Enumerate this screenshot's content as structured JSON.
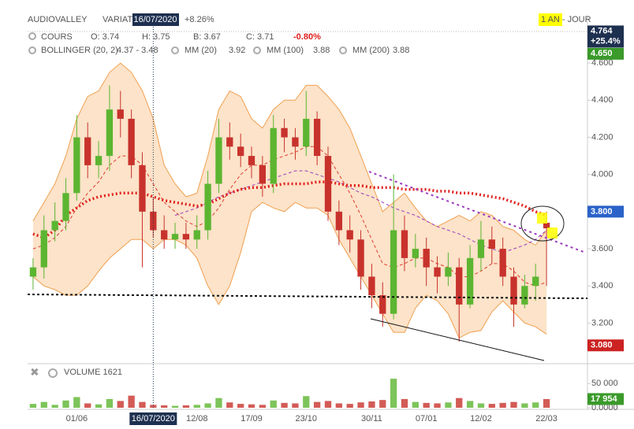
{
  "header": {
    "title": "AUDIOVALLEY",
    "variation_label": "VARIAT",
    "crosshair_date": "16/07/2020",
    "variation": "+8.26%",
    "period": "1 AN - JOUR"
  },
  "quote": {
    "name": "COURS",
    "open": "O: 3.74",
    "high": "H: 3.75",
    "low": "B: 3.67",
    "close": "C: 3.71",
    "change": "-0.80%"
  },
  "chart_data": [
    {
      "type": "candlestick",
      "categories": [
        null,
        null,
        null,
        null,
        "01/06",
        null,
        null,
        null,
        null,
        null,
        null,
        "16/07/2020",
        null,
        null,
        null,
        "12/08",
        null,
        null,
        null,
        null,
        "17/09",
        null,
        null,
        null,
        null,
        "23/10",
        null,
        null,
        null,
        null,
        null,
        "30/11",
        null,
        null,
        null,
        null,
        "07/01",
        null,
        null,
        null,
        null,
        "12/02",
        null,
        null,
        null,
        null,
        null,
        "22/03"
      ],
      "crosshair": 11,
      "up_color": "#5cb531",
      "down_color": "#c8322c",
      "open": [
        3.45,
        3.5,
        3.7,
        3.75,
        3.9,
        4.2,
        4.05,
        4.1,
        4.35,
        4.3,
        4.05,
        3.8,
        3.7,
        3.65,
        3.68,
        3.65,
        3.7,
        3.95,
        4.2,
        4.15,
        4.1,
        4.05,
        3.95,
        4.25,
        4.2,
        4.15,
        4.3,
        4.1,
        3.8,
        3.7,
        3.65,
        3.45,
        3.35,
        3.25,
        3.7,
        3.55,
        3.6,
        3.5,
        3.45,
        3.5,
        3.3,
        3.55,
        3.65,
        3.6,
        3.45,
        3.3,
        3.4,
        3.74
      ],
      "high": [
        3.55,
        3.78,
        3.85,
        3.98,
        4.32,
        4.28,
        4.18,
        4.48,
        4.45,
        4.35,
        4.12,
        3.88,
        3.78,
        3.74,
        3.74,
        3.78,
        4.02,
        4.3,
        4.28,
        4.22,
        4.15,
        4.1,
        4.32,
        4.3,
        4.25,
        4.45,
        4.34,
        4.15,
        3.86,
        3.78,
        3.7,
        3.52,
        3.42,
        4.0,
        3.78,
        3.68,
        3.66,
        3.56,
        3.58,
        3.55,
        3.62,
        3.75,
        3.72,
        3.66,
        3.5,
        3.46,
        3.52,
        3.8
      ],
      "low": [
        3.38,
        3.44,
        3.64,
        3.7,
        3.86,
        3.98,
        3.98,
        4.02,
        4.2,
        3.98,
        3.5,
        3.66,
        3.6,
        3.6,
        3.6,
        3.6,
        3.65,
        3.9,
        4.08,
        4.04,
        3.98,
        3.88,
        3.9,
        4.12,
        4.08,
        4.1,
        4.05,
        3.75,
        3.62,
        3.58,
        3.38,
        3.28,
        3.18,
        3.22,
        3.48,
        3.5,
        3.4,
        3.36,
        3.4,
        3.1,
        3.28,
        3.48,
        3.52,
        3.4,
        3.18,
        3.28,
        3.32,
        3.4
      ],
      "close": [
        3.5,
        3.7,
        3.75,
        3.9,
        4.2,
        4.05,
        4.1,
        4.35,
        4.3,
        4.05,
        3.8,
        3.7,
        3.65,
        3.68,
        3.65,
        3.7,
        3.95,
        4.2,
        4.15,
        4.1,
        4.05,
        3.95,
        4.25,
        4.2,
        4.15,
        4.3,
        4.1,
        3.8,
        3.7,
        3.65,
        3.45,
        3.35,
        3.25,
        3.7,
        3.55,
        3.6,
        3.5,
        3.45,
        3.5,
        3.3,
        3.55,
        3.65,
        3.6,
        3.45,
        3.3,
        3.4,
        3.45,
        3.71
      ],
      "bollinger": {
        "name": "BOLLINGER (20, 2)",
        "value_label": "4.37 - 3.48",
        "color": "#f0a050",
        "fill": "#fbdcbc",
        "upper": [
          3.75,
          3.85,
          3.95,
          4.1,
          4.3,
          4.42,
          4.45,
          4.55,
          4.6,
          4.55,
          4.45,
          4.3,
          4.05,
          3.95,
          3.88,
          3.9,
          4.1,
          4.35,
          4.45,
          4.42,
          4.3,
          4.25,
          4.35,
          4.4,
          4.4,
          4.48,
          4.48,
          4.42,
          4.35,
          4.25,
          4.1,
          3.95,
          3.8,
          3.85,
          3.9,
          3.82,
          3.75,
          3.72,
          3.75,
          3.78,
          3.75,
          3.8,
          3.78,
          3.72,
          3.7,
          3.65,
          3.62,
          3.7
        ],
        "lower": [
          3.45,
          3.4,
          3.38,
          3.35,
          3.35,
          3.4,
          3.48,
          3.55,
          3.6,
          3.65,
          3.65,
          3.6,
          3.65,
          3.65,
          3.62,
          3.55,
          3.4,
          3.3,
          3.4,
          3.58,
          3.8,
          3.85,
          3.82,
          3.8,
          3.85,
          3.82,
          3.82,
          3.78,
          3.65,
          3.55,
          3.45,
          3.35,
          3.25,
          3.15,
          3.15,
          3.28,
          3.35,
          3.32,
          3.25,
          3.12,
          3.15,
          3.16,
          3.26,
          3.32,
          3.26,
          3.2,
          3.18,
          3.14
        ]
      },
      "moving_averages": [
        {
          "name": "MM (20)",
          "value_label": "3.92",
          "color": "#e03a30",
          "dash": "4 3",
          "width": 1,
          "values": [
            3.6,
            3.62,
            3.66,
            3.72,
            3.82,
            3.9,
            3.96,
            4.05,
            4.1,
            4.1,
            4.05,
            3.95,
            3.85,
            3.8,
            3.75,
            3.72,
            3.75,
            3.82,
            3.92,
            4.0,
            4.05,
            4.05,
            4.08,
            4.1,
            4.12,
            4.15,
            4.15,
            4.1,
            4.0,
            3.9,
            3.78,
            3.65,
            3.52,
            3.5,
            3.52,
            3.55,
            3.55,
            3.52,
            3.5,
            3.45,
            3.45,
            3.48,
            3.52,
            3.52,
            3.48,
            3.42,
            3.4,
            3.42
          ]
        },
        {
          "name": "MM (100)",
          "value_label": "3.88",
          "color": "#9b3bbf",
          "dash": "4 3",
          "width": 1,
          "values": [
            null,
            null,
            null,
            null,
            null,
            null,
            null,
            null,
            null,
            null,
            null,
            null,
            null,
            3.78,
            3.8,
            3.82,
            3.85,
            3.88,
            3.9,
            3.92,
            3.94,
            3.96,
            3.98,
            4.0,
            4.02,
            4.02,
            4.0,
            3.98,
            3.96,
            3.93,
            3.9,
            3.88,
            3.85,
            3.82,
            3.8,
            3.78,
            3.75,
            3.72,
            3.7,
            3.68,
            3.65,
            3.62,
            3.6,
            3.58,
            3.6,
            3.62,
            3.65,
            3.7
          ]
        },
        {
          "name": "MM (200)",
          "value_label": "3.88",
          "color": "#e0201c",
          "dash": "2 3",
          "width": 3.5,
          "values": [
            3.68,
            3.66,
            3.7,
            3.78,
            3.82,
            3.86,
            3.88,
            3.89,
            3.9,
            3.9,
            3.9,
            3.88,
            3.86,
            3.85,
            3.84,
            3.83,
            3.84,
            3.87,
            3.9,
            3.92,
            3.93,
            3.93,
            3.94,
            3.95,
            3.95,
            3.95,
            3.96,
            3.96,
            3.95,
            3.94,
            3.94,
            3.93,
            3.93,
            3.93,
            3.92,
            3.92,
            3.92,
            3.91,
            3.91,
            3.9,
            3.9,
            3.89,
            3.88,
            3.87,
            3.85,
            3.83,
            3.8,
            3.78
          ]
        }
      ],
      "ylim": [
        2.99,
        4.77
      ],
      "yticks": [
        {
          "value": 3.2,
          "label": "3.200"
        },
        {
          "value": 3.4,
          "label": "3.400"
        },
        {
          "value": 3.6,
          "label": "3.600"
        },
        {
          "value": 3.8,
          "label": "3.800"
        },
        {
          "value": 4.0,
          "label": "4.000"
        },
        {
          "value": 4.2,
          "label": "4.200"
        },
        {
          "value": 4.4,
          "label": "4.400"
        },
        {
          "value": 4.6,
          "label": "4.600"
        }
      ],
      "price_tags": [
        {
          "value": 4.764,
          "label": "4.764",
          "sub": "+25.4%",
          "color": "#1e3050"
        },
        {
          "value": 4.65,
          "label": "4.650",
          "color": "#3a9a2a"
        },
        {
          "value": 3.8,
          "label": "3.800",
          "color": "#2a62c8"
        },
        {
          "value": 3.08,
          "label": "3.080",
          "color": "#cc2222"
        }
      ]
    },
    {
      "type": "bar",
      "title": "VOLUME 1621",
      "values": [
        8000,
        12000,
        6000,
        15000,
        22000,
        9000,
        7000,
        18000,
        14000,
        25000,
        12000,
        6000,
        5000,
        4000,
        5000,
        6000,
        9000,
        20000,
        11000,
        8000,
        7000,
        6000,
        15000,
        10000,
        9000,
        24000,
        12000,
        14000,
        9000,
        8000,
        11000,
        13000,
        16000,
        60000,
        18000,
        12000,
        10000,
        9000,
        11000,
        20000,
        14000,
        9000,
        8000,
        10000,
        12000,
        9000,
        11000,
        17954
      ],
      "ylim": [
        0,
        65000
      ],
      "yticks": [
        {
          "value": 0,
          "label": "0.0000"
        },
        {
          "value": 50000,
          "label": "50 000"
        }
      ],
      "price_tags": [
        {
          "value": 17954,
          "label": "17 954",
          "color": "#3a9a2a"
        }
      ]
    }
  ]
}
